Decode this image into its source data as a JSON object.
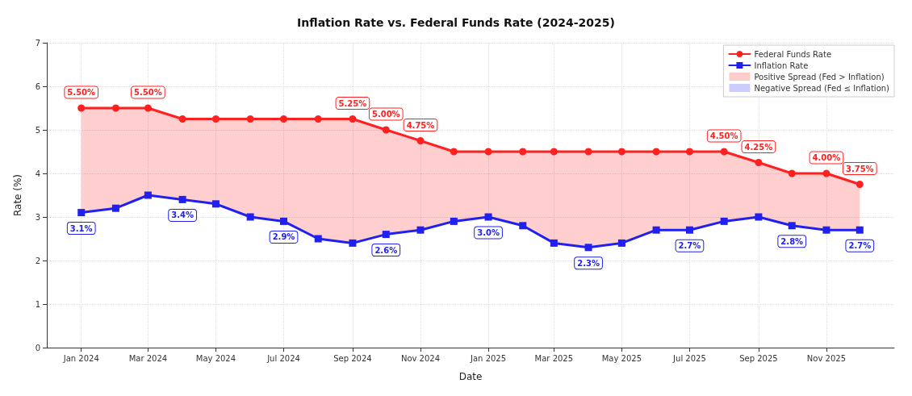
{
  "chart_data": {
    "type": "line",
    "title": "Inflation Rate vs. Federal Funds Rate (2024-2025)",
    "xlabel": "Date",
    "ylabel": "Rate (%)",
    "x": [
      "2024-01",
      "2024-02",
      "2024-03",
      "2024-04",
      "2024-05",
      "2024-06",
      "2024-07",
      "2024-08",
      "2024-09",
      "2024-10",
      "2024-11",
      "2024-12",
      "2025-01",
      "2025-02",
      "2025-03",
      "2025-04",
      "2025-05",
      "2025-06",
      "2025-07",
      "2025-08",
      "2025-09",
      "2025-10",
      "2025-11",
      "2025-12"
    ],
    "series": [
      {
        "name": "Federal Funds Rate",
        "type": "line",
        "color": "#ff2020",
        "marker": "circle",
        "values": [
          5.5,
          5.5,
          5.5,
          5.25,
          5.25,
          5.25,
          5.25,
          5.25,
          5.25,
          5.0,
          4.75,
          4.5,
          4.5,
          4.5,
          4.5,
          4.5,
          4.5,
          4.5,
          4.5,
          4.5,
          4.25,
          4.0,
          4.0,
          3.75
        ],
        "lower": [
          3.1,
          3.2,
          3.5,
          3.4,
          3.3,
          3.0,
          2.9,
          2.5,
          2.4,
          2.6,
          2.7,
          2.9,
          3.0,
          2.8,
          2.4,
          2.3,
          2.4,
          2.7,
          2.7,
          2.9,
          3.0,
          2.8,
          2.7,
          2.7
        ],
        "upper": [
          5.5,
          5.5,
          5.5,
          5.25,
          5.25,
          5.25,
          5.25,
          5.25,
          5.25,
          5.0,
          4.75,
          4.5,
          4.5,
          4.5,
          4.5,
          4.5,
          4.5,
          4.5,
          4.5,
          4.5,
          4.25,
          4.0,
          4.0,
          3.75
        ],
        "value_labels": [
          "5.50%",
          null,
          "5.50%",
          null,
          null,
          null,
          null,
          null,
          "5.25%",
          "5.00%",
          "4.75%",
          null,
          null,
          null,
          null,
          null,
          null,
          null,
          null,
          "4.50%",
          "4.25%",
          null,
          "4.00%",
          "3.75%"
        ]
      },
      {
        "name": "Inflation Rate",
        "type": "line",
        "color": "#2020f0",
        "marker": "square",
        "values": [
          3.1,
          3.2,
          3.5,
          3.4,
          3.3,
          3.0,
          2.9,
          2.5,
          2.4,
          2.6,
          2.7,
          2.9,
          3.0,
          2.8,
          2.4,
          2.3,
          2.4,
          2.7,
          2.7,
          2.9,
          3.0,
          2.8,
          2.7,
          2.7
        ],
        "value_labels": [
          "3.1%",
          null,
          null,
          "3.4%",
          null,
          null,
          "2.9%",
          null,
          null,
          "2.6%",
          null,
          null,
          "3.0%",
          null,
          null,
          "2.3%",
          null,
          null,
          "2.7%",
          null,
          null,
          "2.8%",
          null,
          "2.7%"
        ]
      },
      {
        "name": "Positive Spread (Fed > Inflation)",
        "type": "area",
        "color": "#ffcccc",
        "values": [
          null,
          null,
          null,
          null,
          null,
          null,
          null,
          null,
          null,
          null,
          null,
          null,
          null,
          null,
          null,
          null,
          null,
          null,
          null,
          null,
          null,
          null,
          null,
          null
        ],
        "lower": [
          null,
          null,
          null,
          null,
          null,
          null,
          null,
          null,
          null,
          null,
          null,
          null,
          null,
          null,
          null,
          null,
          null,
          null,
          null,
          null,
          null,
          null,
          null,
          null
        ]
      },
      {
        "name": "Negative Spread (Fed ≤ Inflation)",
        "type": "area",
        "color": "#ccccff",
        "values": [
          null,
          null,
          null,
          null,
          null,
          null,
          null,
          null,
          null,
          null,
          null,
          null,
          null,
          null,
          null,
          null,
          null,
          null,
          null,
          null,
          null,
          null,
          null,
          null
        ],
        "lower": [
          null,
          null,
          null,
          null,
          null,
          null,
          null,
          null,
          null,
          null,
          null,
          null,
          null,
          null,
          null,
          null,
          null,
          null,
          null,
          null,
          null,
          null,
          null,
          null
        ]
      }
    ],
    "xlim": [
      "2023-12-01",
      "2026-01-01"
    ],
    "xticks": [
      {
        "value": "2024-01",
        "label": "Jan 2024"
      },
      {
        "value": "2024-03",
        "label": "Mar 2024"
      },
      {
        "value": "2024-05",
        "label": "May 2024"
      },
      {
        "value": "2024-07",
        "label": "Jul 2024"
      },
      {
        "value": "2024-09",
        "label": "Sep 2024"
      },
      {
        "value": "2024-11",
        "label": "Nov 2024"
      },
      {
        "value": "2025-01",
        "label": "Jan 2025"
      },
      {
        "value": "2025-03",
        "label": "Mar 2025"
      },
      {
        "value": "2025-05",
        "label": "May 2025"
      },
      {
        "value": "2025-07",
        "label": "Jul 2025"
      },
      {
        "value": "2025-09",
        "label": "Sep 2025"
      },
      {
        "value": "2025-11",
        "label": "Nov 2025"
      }
    ],
    "ylim": [
      0,
      7
    ],
    "yticks": [
      0,
      1,
      2,
      3,
      4,
      5,
      6,
      7
    ],
    "grid": true,
    "legend": "top right",
    "line_style": "solid"
  }
}
